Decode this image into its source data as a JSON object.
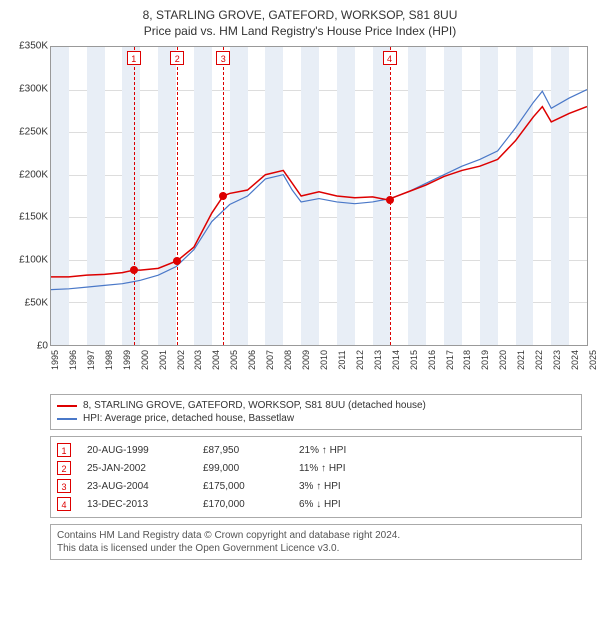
{
  "title": "8, STARLING GROVE, GATEFORD, WORKSOP, S81 8UU",
  "subtitle": "Price paid vs. HM Land Registry's House Price Index (HPI)",
  "chart": {
    "type": "line",
    "background_color": "#ffffff",
    "grid_color": "#dddddd",
    "border_color": "#999999",
    "ylim": [
      0,
      350000
    ],
    "ytick_step": 50000,
    "y_tick_labels": [
      "£0",
      "£50K",
      "£100K",
      "£150K",
      "£200K",
      "£250K",
      "£300K",
      "£350K"
    ],
    "xlim": [
      1995,
      2025
    ],
    "x_ticks": [
      1995,
      1996,
      1997,
      1998,
      1999,
      2000,
      2001,
      2002,
      2003,
      2004,
      2005,
      2006,
      2007,
      2008,
      2009,
      2010,
      2011,
      2012,
      2013,
      2014,
      2015,
      2016,
      2017,
      2018,
      2019,
      2020,
      2021,
      2022,
      2023,
      2024,
      2025
    ],
    "vbands": [
      [
        1995,
        1996
      ],
      [
        1997,
        1998
      ],
      [
        1999,
        2000
      ],
      [
        2001,
        2002
      ],
      [
        2003,
        2004
      ],
      [
        2005,
        2006
      ],
      [
        2007,
        2008
      ],
      [
        2009,
        2010
      ],
      [
        2011,
        2012
      ],
      [
        2013,
        2014
      ],
      [
        2015,
        2016
      ],
      [
        2017,
        2018
      ],
      [
        2019,
        2020
      ],
      [
        2021,
        2022
      ],
      [
        2023,
        2024
      ]
    ],
    "vband_color": "#e8eef6",
    "marker_line_color": "#dd0000",
    "marker_dot_color": "#dd0000",
    "markers": [
      {
        "n": "1",
        "year": 1999.63
      },
      {
        "n": "2",
        "year": 2002.07
      },
      {
        "n": "3",
        "year": 2004.64
      },
      {
        "n": "4",
        "year": 2013.95
      }
    ],
    "series": [
      {
        "name": "property",
        "label": "8, STARLING GROVE, GATEFORD, WORKSOP, S81 8UU (detached house)",
        "color": "#dd0000",
        "width": 1.5,
        "points": [
          [
            1995,
            80000
          ],
          [
            1996,
            80000
          ],
          [
            1997,
            82000
          ],
          [
            1998,
            83000
          ],
          [
            1999,
            85000
          ],
          [
            1999.63,
            87950
          ],
          [
            2000,
            88000
          ],
          [
            2001,
            90000
          ],
          [
            2002.07,
            99000
          ],
          [
            2003,
            115000
          ],
          [
            2004,
            155000
          ],
          [
            2004.64,
            175000
          ],
          [
            2005,
            178000
          ],
          [
            2006,
            182000
          ],
          [
            2007,
            200000
          ],
          [
            2008,
            205000
          ],
          [
            2008.5,
            190000
          ],
          [
            2009,
            175000
          ],
          [
            2010,
            180000
          ],
          [
            2011,
            175000
          ],
          [
            2012,
            173000
          ],
          [
            2013,
            174000
          ],
          [
            2013.95,
            170000
          ],
          [
            2014,
            172000
          ],
          [
            2015,
            180000
          ],
          [
            2016,
            188000
          ],
          [
            2017,
            198000
          ],
          [
            2018,
            205000
          ],
          [
            2019,
            210000
          ],
          [
            2020,
            218000
          ],
          [
            2021,
            240000
          ],
          [
            2022,
            268000
          ],
          [
            2022.5,
            280000
          ],
          [
            2023,
            262000
          ],
          [
            2024,
            272000
          ],
          [
            2025,
            280000
          ]
        ]
      },
      {
        "name": "hpi",
        "label": "HPI: Average price, detached house, Bassetlaw",
        "color": "#4a78c8",
        "width": 1.2,
        "points": [
          [
            1995,
            65000
          ],
          [
            1996,
            66000
          ],
          [
            1997,
            68000
          ],
          [
            1998,
            70000
          ],
          [
            1999,
            72000
          ],
          [
            2000,
            76000
          ],
          [
            2001,
            82000
          ],
          [
            2002,
            92000
          ],
          [
            2003,
            112000
          ],
          [
            2004,
            145000
          ],
          [
            2005,
            165000
          ],
          [
            2006,
            175000
          ],
          [
            2007,
            195000
          ],
          [
            2008,
            200000
          ],
          [
            2008.5,
            182000
          ],
          [
            2009,
            168000
          ],
          [
            2010,
            172000
          ],
          [
            2011,
            168000
          ],
          [
            2012,
            166000
          ],
          [
            2013,
            168000
          ],
          [
            2014,
            172000
          ],
          [
            2015,
            180000
          ],
          [
            2016,
            190000
          ],
          [
            2017,
            200000
          ],
          [
            2018,
            210000
          ],
          [
            2019,
            218000
          ],
          [
            2020,
            228000
          ],
          [
            2021,
            255000
          ],
          [
            2022,
            285000
          ],
          [
            2022.5,
            298000
          ],
          [
            2023,
            278000
          ],
          [
            2024,
            290000
          ],
          [
            2025,
            300000
          ]
        ]
      }
    ]
  },
  "legend": [
    {
      "color": "#dd0000",
      "label": "8, STARLING GROVE, GATEFORD, WORKSOP, S81 8UU (detached house)"
    },
    {
      "color": "#4a78c8",
      "label": "HPI: Average price, detached house, Bassetlaw"
    }
  ],
  "events": [
    {
      "n": "1",
      "date": "20-AUG-1999",
      "price": "£87,950",
      "pct": "21% ↑ HPI"
    },
    {
      "n": "2",
      "date": "25-JAN-2002",
      "price": "£99,000",
      "pct": "11% ↑ HPI"
    },
    {
      "n": "3",
      "date": "23-AUG-2004",
      "price": "£175,000",
      "pct": "3% ↑ HPI"
    },
    {
      "n": "4",
      "date": "13-DEC-2013",
      "price": "£170,000",
      "pct": "6% ↓ HPI"
    }
  ],
  "footer": {
    "line1": "Contains HM Land Registry data © Crown copyright and database right 2024.",
    "line2": "This data is licensed under the Open Government Licence v3.0."
  }
}
